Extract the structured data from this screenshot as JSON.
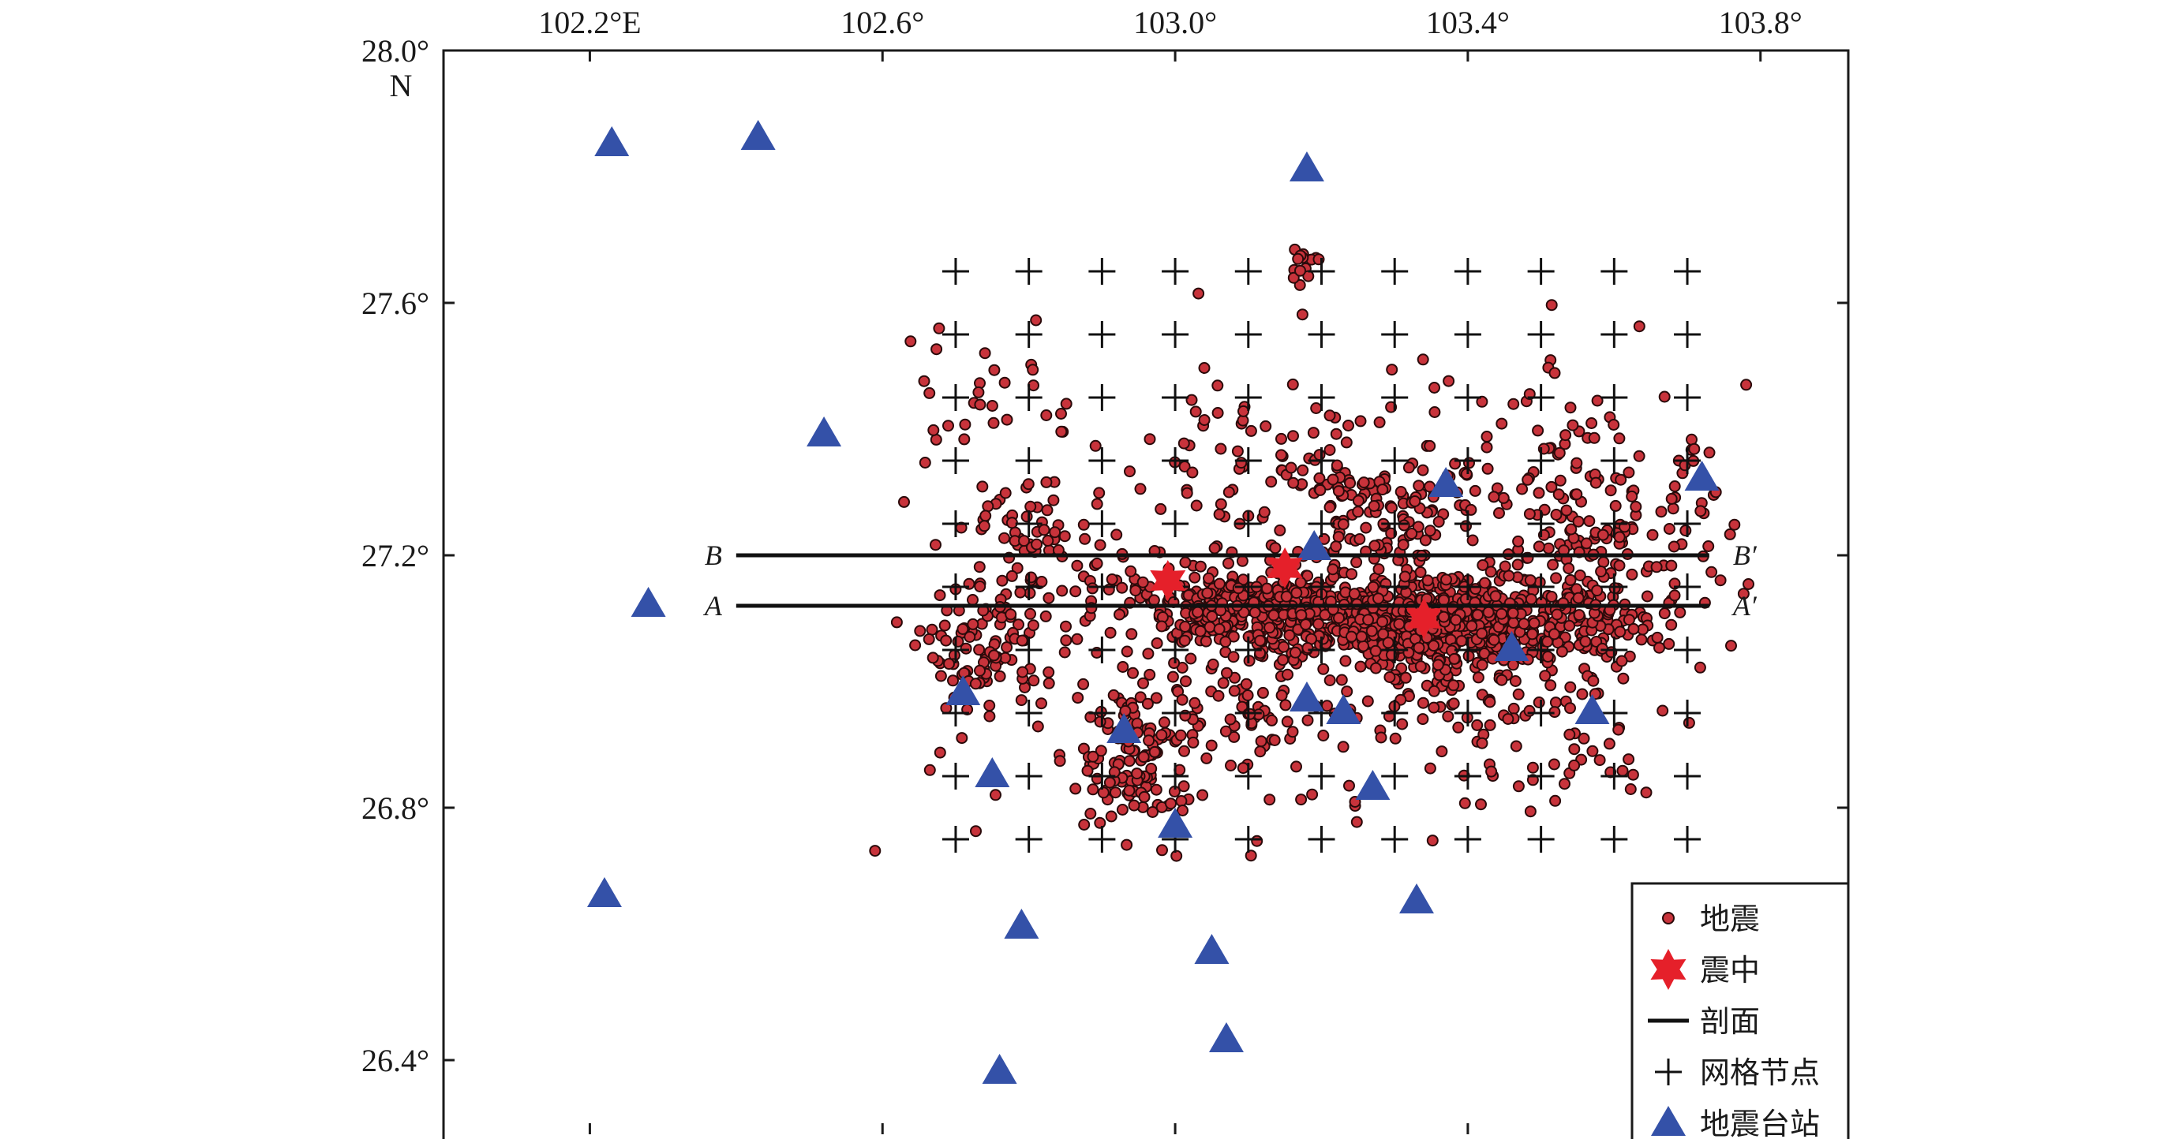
{
  "map": {
    "lon_range": [
      102.0,
      103.92
    ],
    "lat_range": [
      26.28,
      28.0
    ],
    "colors": {
      "frame": "#1a1a1a",
      "quake_fill": "#c8333b",
      "quake_stroke": "#2a0a0a",
      "epicenter": "#e5202a",
      "station": "#3451a8",
      "grid_node": "#111111",
      "profile_line": "#111111"
    },
    "top_ticks": [
      {
        "value": 102.2,
        "label": "102.2°E"
      },
      {
        "value": 102.6,
        "label": "102.6°"
      },
      {
        "value": 103.0,
        "label": "103.0°"
      },
      {
        "value": 103.4,
        "label": "103.4°"
      },
      {
        "value": 103.8,
        "label": "103.8°"
      }
    ],
    "bottom_ticks": [
      102.2,
      102.6,
      103.0,
      103.4,
      103.8
    ],
    "left_ticks": [
      {
        "value": 28.0,
        "label": "28.0°"
      },
      {
        "value": 27.6,
        "label": "27.6°"
      },
      {
        "value": 27.2,
        "label": "27.2°"
      },
      {
        "value": 26.8,
        "label": "26.8°"
      },
      {
        "value": 26.4,
        "label": "26.4°"
      }
    ],
    "lat_unit_label": "N",
    "profiles": [
      {
        "name": "B",
        "name_end": "B′",
        "lat": 27.2,
        "lon_start": 102.4,
        "lon_end": 103.73
      },
      {
        "name": "A",
        "name_end": "A′",
        "lat": 27.12,
        "lon_start": 102.4,
        "lon_end": 103.73
      }
    ],
    "epicenters": [
      {
        "lon": 102.99,
        "lat": 27.16
      },
      {
        "lon": 103.15,
        "lat": 27.18
      },
      {
        "lon": 103.34,
        "lat": 27.1
      }
    ],
    "stations": [
      {
        "lon": 102.23,
        "lat": 27.85
      },
      {
        "lon": 102.43,
        "lat": 27.86
      },
      {
        "lon": 103.18,
        "lat": 27.81
      },
      {
        "lon": 102.52,
        "lat": 27.39
      },
      {
        "lon": 102.28,
        "lat": 27.12
      },
      {
        "lon": 103.72,
        "lat": 27.32
      },
      {
        "lon": 103.37,
        "lat": 27.31
      },
      {
        "lon": 103.19,
        "lat": 27.21
      },
      {
        "lon": 102.71,
        "lat": 26.98
      },
      {
        "lon": 103.46,
        "lat": 27.05
      },
      {
        "lon": 103.18,
        "lat": 26.97
      },
      {
        "lon": 103.23,
        "lat": 26.95
      },
      {
        "lon": 103.57,
        "lat": 26.95
      },
      {
        "lon": 102.93,
        "lat": 26.92
      },
      {
        "lon": 102.75,
        "lat": 26.85
      },
      {
        "lon": 103.27,
        "lat": 26.83
      },
      {
        "lon": 103.0,
        "lat": 26.77
      },
      {
        "lon": 102.22,
        "lat": 26.66
      },
      {
        "lon": 103.33,
        "lat": 26.65
      },
      {
        "lon": 102.79,
        "lat": 26.61
      },
      {
        "lon": 103.05,
        "lat": 26.57
      },
      {
        "lon": 103.07,
        "lat": 26.43
      },
      {
        "lon": 102.76,
        "lat": 26.38
      }
    ],
    "grid_nodes": {
      "cols": [
        102.7,
        102.8,
        102.9,
        103.0,
        103.1,
        103.2,
        103.3,
        103.4,
        103.5,
        103.6,
        103.7
      ],
      "rows": [
        27.65,
        27.55,
        27.45,
        27.35,
        27.25,
        27.15,
        27.05,
        26.95,
        26.85,
        26.75
      ]
    },
    "earthquake_clusters": [
      {
        "lon": 103.3,
        "lat": 27.1,
        "sd_lon": 0.13,
        "sd_lat": 0.03,
        "n": 520
      },
      {
        "lon": 103.36,
        "lat": 27.06,
        "sd_lon": 0.05,
        "sd_lat": 0.05,
        "n": 200
      },
      {
        "lon": 103.08,
        "lat": 27.12,
        "sd_lon": 0.09,
        "sd_lat": 0.03,
        "n": 200
      },
      {
        "lon": 102.95,
        "lat": 26.88,
        "sd_lon": 0.04,
        "sd_lat": 0.06,
        "n": 120
      },
      {
        "lon": 102.74,
        "lat": 27.05,
        "sd_lon": 0.04,
        "sd_lat": 0.05,
        "n": 100
      },
      {
        "lon": 103.6,
        "lat": 27.22,
        "sd_lon": 0.08,
        "sd_lat": 0.08,
        "n": 130
      },
      {
        "lon": 103.53,
        "lat": 27.08,
        "sd_lon": 0.07,
        "sd_lat": 0.05,
        "n": 110
      },
      {
        "lon": 103.28,
        "lat": 27.26,
        "sd_lon": 0.06,
        "sd_lat": 0.05,
        "n": 90
      },
      {
        "lon": 102.82,
        "lat": 27.22,
        "sd_lon": 0.05,
        "sd_lat": 0.04,
        "n": 60
      },
      {
        "lon": 103.12,
        "lat": 26.98,
        "sd_lon": 0.08,
        "sd_lat": 0.06,
        "n": 80
      },
      {
        "lon": 103.18,
        "lat": 27.66,
        "sd_lon": 0.01,
        "sd_lat": 0.02,
        "n": 14
      },
      {
        "lon": 103.15,
        "lat": 27.3,
        "sd_lon": 0.1,
        "sd_lat": 0.08,
        "n": 80
      },
      {
        "lon": 103.2,
        "lat": 27.1,
        "sd_lon": 0.35,
        "sd_lat": 0.2,
        "n": 220
      },
      {
        "lon": 102.72,
        "lat": 27.45,
        "sd_lon": 0.05,
        "sd_lat": 0.1,
        "n": 30
      },
      {
        "lon": 103.45,
        "lat": 27.35,
        "sd_lon": 0.1,
        "sd_lat": 0.1,
        "n": 60
      },
      {
        "lon": 103.5,
        "lat": 26.9,
        "sd_lon": 0.1,
        "sd_lat": 0.06,
        "n": 40
      }
    ],
    "legend": {
      "items": [
        {
          "symbol": "quake",
          "label": "地震"
        },
        {
          "symbol": "epicenter",
          "label": "震中"
        },
        {
          "symbol": "profile",
          "label": "剖面"
        },
        {
          "symbol": "grid",
          "label": "网格节点"
        },
        {
          "symbol": "station",
          "label": "地震台站"
        }
      ]
    }
  }
}
